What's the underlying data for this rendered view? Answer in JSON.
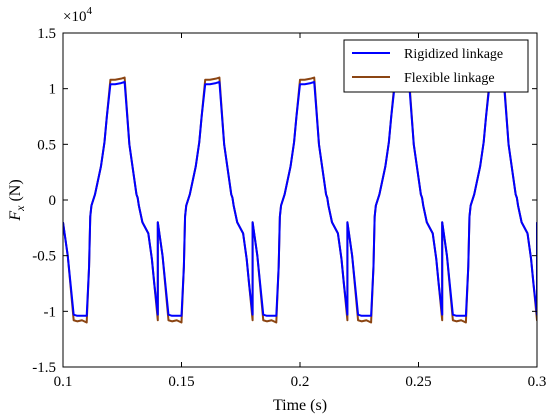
{
  "chart_data": {
    "type": "line",
    "title": "",
    "xlabel": "Time (s)",
    "ylabel_main": "F",
    "ylabel_sub": "x",
    "ylabel_unit": "(N)",
    "y_multiplier": "×10",
    "y_multiplier_exp": "4",
    "xlim": [
      0.1,
      0.3
    ],
    "ylim": [
      -15000,
      15000
    ],
    "xticks": [
      0.1,
      0.15,
      0.2,
      0.25,
      0.3
    ],
    "xtick_labels": [
      "0.1",
      "0.15",
      "0.2",
      "0.25",
      "0.3"
    ],
    "yticks": [
      -15000,
      -10000,
      -5000,
      0,
      5000,
      10000,
      15000
    ],
    "ytick_labels": [
      "-1.5",
      "-1",
      "-0.5",
      "0",
      "0.5",
      "1",
      "1.5"
    ],
    "grid": false,
    "legend_position": "top-right",
    "period": 0.04,
    "series": [
      {
        "name": "Rigidized linkage",
        "color": "#0000ff",
        "pattern": {
          "x": [
            0.0,
            0.002,
            0.0045,
            0.006,
            0.008,
            0.01,
            0.011,
            0.0115,
            0.012,
            0.0135,
            0.016,
            0.0175,
            0.0185,
            0.02,
            0.022,
            0.0245,
            0.026,
            0.028,
            0.03,
            0.031,
            0.0315,
            0.032,
            0.0335,
            0.036,
            0.0375,
            0.0385,
            0.04
          ],
          "y": [
            -2000,
            -5000,
            -10300,
            -10400,
            -10400,
            -10400,
            -6000,
            -1500,
            -500,
            500,
            3000,
            5200,
            7500,
            10400,
            10400,
            10500,
            10600,
            5000,
            2000,
            500,
            200,
            -500,
            -2000,
            -3000,
            -5300,
            -7500,
            -10300
          ]
        }
      },
      {
        "name": "Flexible linkage",
        "color": "#8b4513",
        "pattern": {
          "x": [
            0.0,
            0.002,
            0.0045,
            0.006,
            0.008,
            0.01,
            0.011,
            0.0115,
            0.012,
            0.0135,
            0.016,
            0.0175,
            0.0185,
            0.02,
            0.022,
            0.0245,
            0.026,
            0.028,
            0.03,
            0.031,
            0.0315,
            0.032,
            0.0335,
            0.036,
            0.0375,
            0.0385,
            0.04
          ],
          "y": [
            -2000,
            -5000,
            -10800,
            -10900,
            -10800,
            -11000,
            -6000,
            -1500,
            -500,
            500,
            3000,
            5200,
            7500,
            10800,
            10800,
            10900,
            11000,
            5000,
            2000,
            500,
            200,
            -500,
            -2000,
            -3000,
            -5300,
            -7500,
            -10800
          ]
        }
      }
    ]
  }
}
